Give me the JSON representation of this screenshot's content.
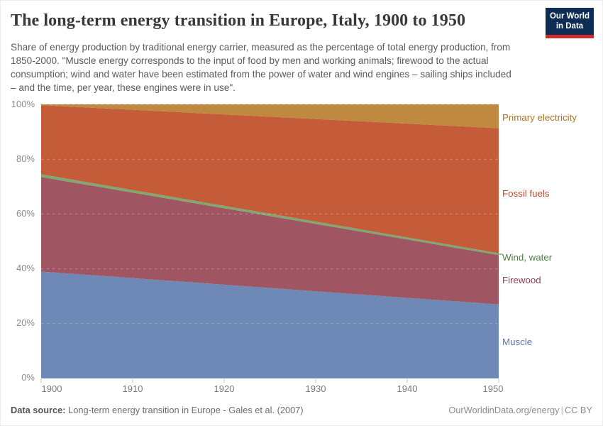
{
  "header": {
    "logo": {
      "line1": "Our World",
      "line2": "in Data",
      "bg_color": "#0E2D55",
      "stripe_color": "#CB2D2F"
    }
  },
  "chart_data": {
    "type": "area",
    "stacked": true,
    "interpolation": "linear",
    "title": "The long-term energy transition in Europe, Italy, 1900 to 1950",
    "subtitle": "Share of energy production by traditional energy carrier, measured as the percentage of total energy production, from 1850-2000. \"Muscle energy corresponds to the input of food by men and working animals; firewood to the actual consumption; wind and water have been estimated from the power of water and wind engines – sailing ships included – and the time, per year, these engines were in use\".",
    "unit": "%",
    "x": [
      1900,
      1950
    ],
    "xlim": [
      1900,
      1950
    ],
    "ylim": [
      0,
      100
    ],
    "grid": "dashed horizontal at 20% steps",
    "legend_position": "right-edge labels",
    "series_order": "bottom-to-top",
    "series": [
      {
        "name": "Muscle",
        "values": [
          39.0,
          27.0
        ],
        "color": "#6E89B6",
        "label_color": "#5674AB"
      },
      {
        "name": "Firewood",
        "values": [
          34.5,
          18.0
        ],
        "color": "#A05563",
        "label_color": "#8E3E4F"
      },
      {
        "name": "Wind, water",
        "values": [
          1.0,
          0.7
        ],
        "color": "#7FA871",
        "label_color": "#4C7D3F"
      },
      {
        "name": "Fossil fuels",
        "values": [
          25.2,
          45.6
        ],
        "color": "#C45B39",
        "label_color": "#BF4A2B"
      },
      {
        "name": "Primary electricity",
        "values": [
          0.3,
          8.7
        ],
        "color": "#BF8940",
        "label_color": "#B0701F"
      }
    ],
    "x_ticks": [
      "1900",
      "1910",
      "1920",
      "1930",
      "1940",
      "1950"
    ],
    "y_ticks": [
      "0%",
      "20%",
      "40%",
      "60%",
      "80%",
      "100%"
    ]
  },
  "footer": {
    "datasource_label": "Data source:",
    "datasource_value": "Long-term energy transition in Europe - Gales et al. (2007)",
    "credit": "OurWorldinData.org/energy",
    "separator": "|",
    "license": "CC BY"
  }
}
